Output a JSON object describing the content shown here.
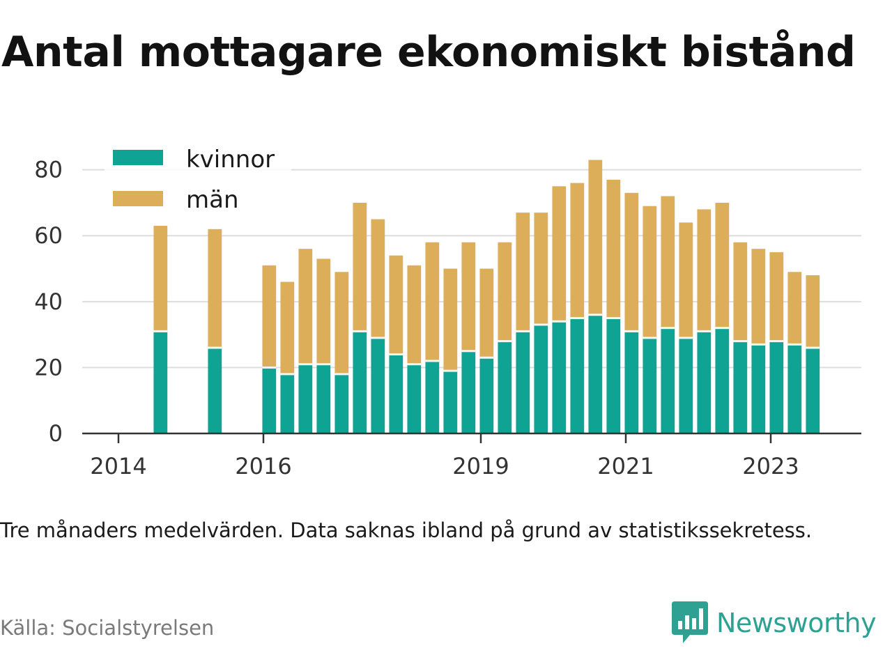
{
  "title": "Antal mottagare ekonomiskt bistånd",
  "note": "Tre månaders medelvärden. Data saknas ibland på grund av statistikssekretess.",
  "source": "Källa: Socialstyrelsen",
  "brand": {
    "name": "Newsworthy",
    "icon": "newsworthy-bar-chart-logo-icon",
    "color": "#2fa192"
  },
  "chart_data": {
    "type": "bar",
    "stacked": true,
    "grid": true,
    "legend_position": "top-left",
    "ylim": [
      0,
      85
    ],
    "y_ticks": [
      0,
      20,
      40,
      60,
      80
    ],
    "x_ticks": [
      {
        "label": "2014",
        "x": 2014.0
      },
      {
        "label": "2016",
        "x": 2016.0
      },
      {
        "label": "2019",
        "x": 2019.0
      },
      {
        "label": "2021",
        "x": 2021.0
      },
      {
        "label": "2023",
        "x": 2023.0
      }
    ],
    "xlim": [
      2013.5,
      2024.25
    ],
    "bar_width_years": 0.19,
    "series": [
      {
        "name": "kvinnor",
        "color": "#0fa393"
      },
      {
        "name": "män",
        "color": "#dcae5a"
      }
    ],
    "bars": [
      {
        "x": 2014.58,
        "kvinnor": 31,
        "man": 32
      },
      {
        "x": 2015.33,
        "kvinnor": 26,
        "man": 36
      },
      {
        "x": 2016.08,
        "kvinnor": 20,
        "man": 31
      },
      {
        "x": 2016.33,
        "kvinnor": 18,
        "man": 28
      },
      {
        "x": 2016.58,
        "kvinnor": 21,
        "man": 35
      },
      {
        "x": 2016.83,
        "kvinnor": 21,
        "man": 32
      },
      {
        "x": 2017.08,
        "kvinnor": 18,
        "man": 31
      },
      {
        "x": 2017.33,
        "kvinnor": 31,
        "man": 39
      },
      {
        "x": 2017.58,
        "kvinnor": 29,
        "man": 36
      },
      {
        "x": 2017.83,
        "kvinnor": 24,
        "man": 30
      },
      {
        "x": 2018.08,
        "kvinnor": 21,
        "man": 30
      },
      {
        "x": 2018.33,
        "kvinnor": 22,
        "man": 36
      },
      {
        "x": 2018.58,
        "kvinnor": 19,
        "man": 31
      },
      {
        "x": 2018.83,
        "kvinnor": 25,
        "man": 33
      },
      {
        "x": 2019.08,
        "kvinnor": 23,
        "man": 27
      },
      {
        "x": 2019.33,
        "kvinnor": 28,
        "man": 30
      },
      {
        "x": 2019.58,
        "kvinnor": 31,
        "man": 36
      },
      {
        "x": 2019.83,
        "kvinnor": 33,
        "man": 34
      },
      {
        "x": 2020.08,
        "kvinnor": 34,
        "man": 41
      },
      {
        "x": 2020.33,
        "kvinnor": 35,
        "man": 41
      },
      {
        "x": 2020.58,
        "kvinnor": 36,
        "man": 47
      },
      {
        "x": 2020.83,
        "kvinnor": 35,
        "man": 42
      },
      {
        "x": 2021.08,
        "kvinnor": 31,
        "man": 42
      },
      {
        "x": 2021.33,
        "kvinnor": 29,
        "man": 40
      },
      {
        "x": 2021.58,
        "kvinnor": 32,
        "man": 40
      },
      {
        "x": 2021.83,
        "kvinnor": 29,
        "man": 35
      },
      {
        "x": 2022.08,
        "kvinnor": 31,
        "man": 37
      },
      {
        "x": 2022.33,
        "kvinnor": 32,
        "man": 38
      },
      {
        "x": 2022.58,
        "kvinnor": 28,
        "man": 30
      },
      {
        "x": 2022.83,
        "kvinnor": 27,
        "man": 29
      },
      {
        "x": 2023.08,
        "kvinnor": 28,
        "man": 27
      },
      {
        "x": 2023.33,
        "kvinnor": 27,
        "man": 22
      },
      {
        "x": 2023.58,
        "kvinnor": 26,
        "man": 22
      }
    ]
  }
}
